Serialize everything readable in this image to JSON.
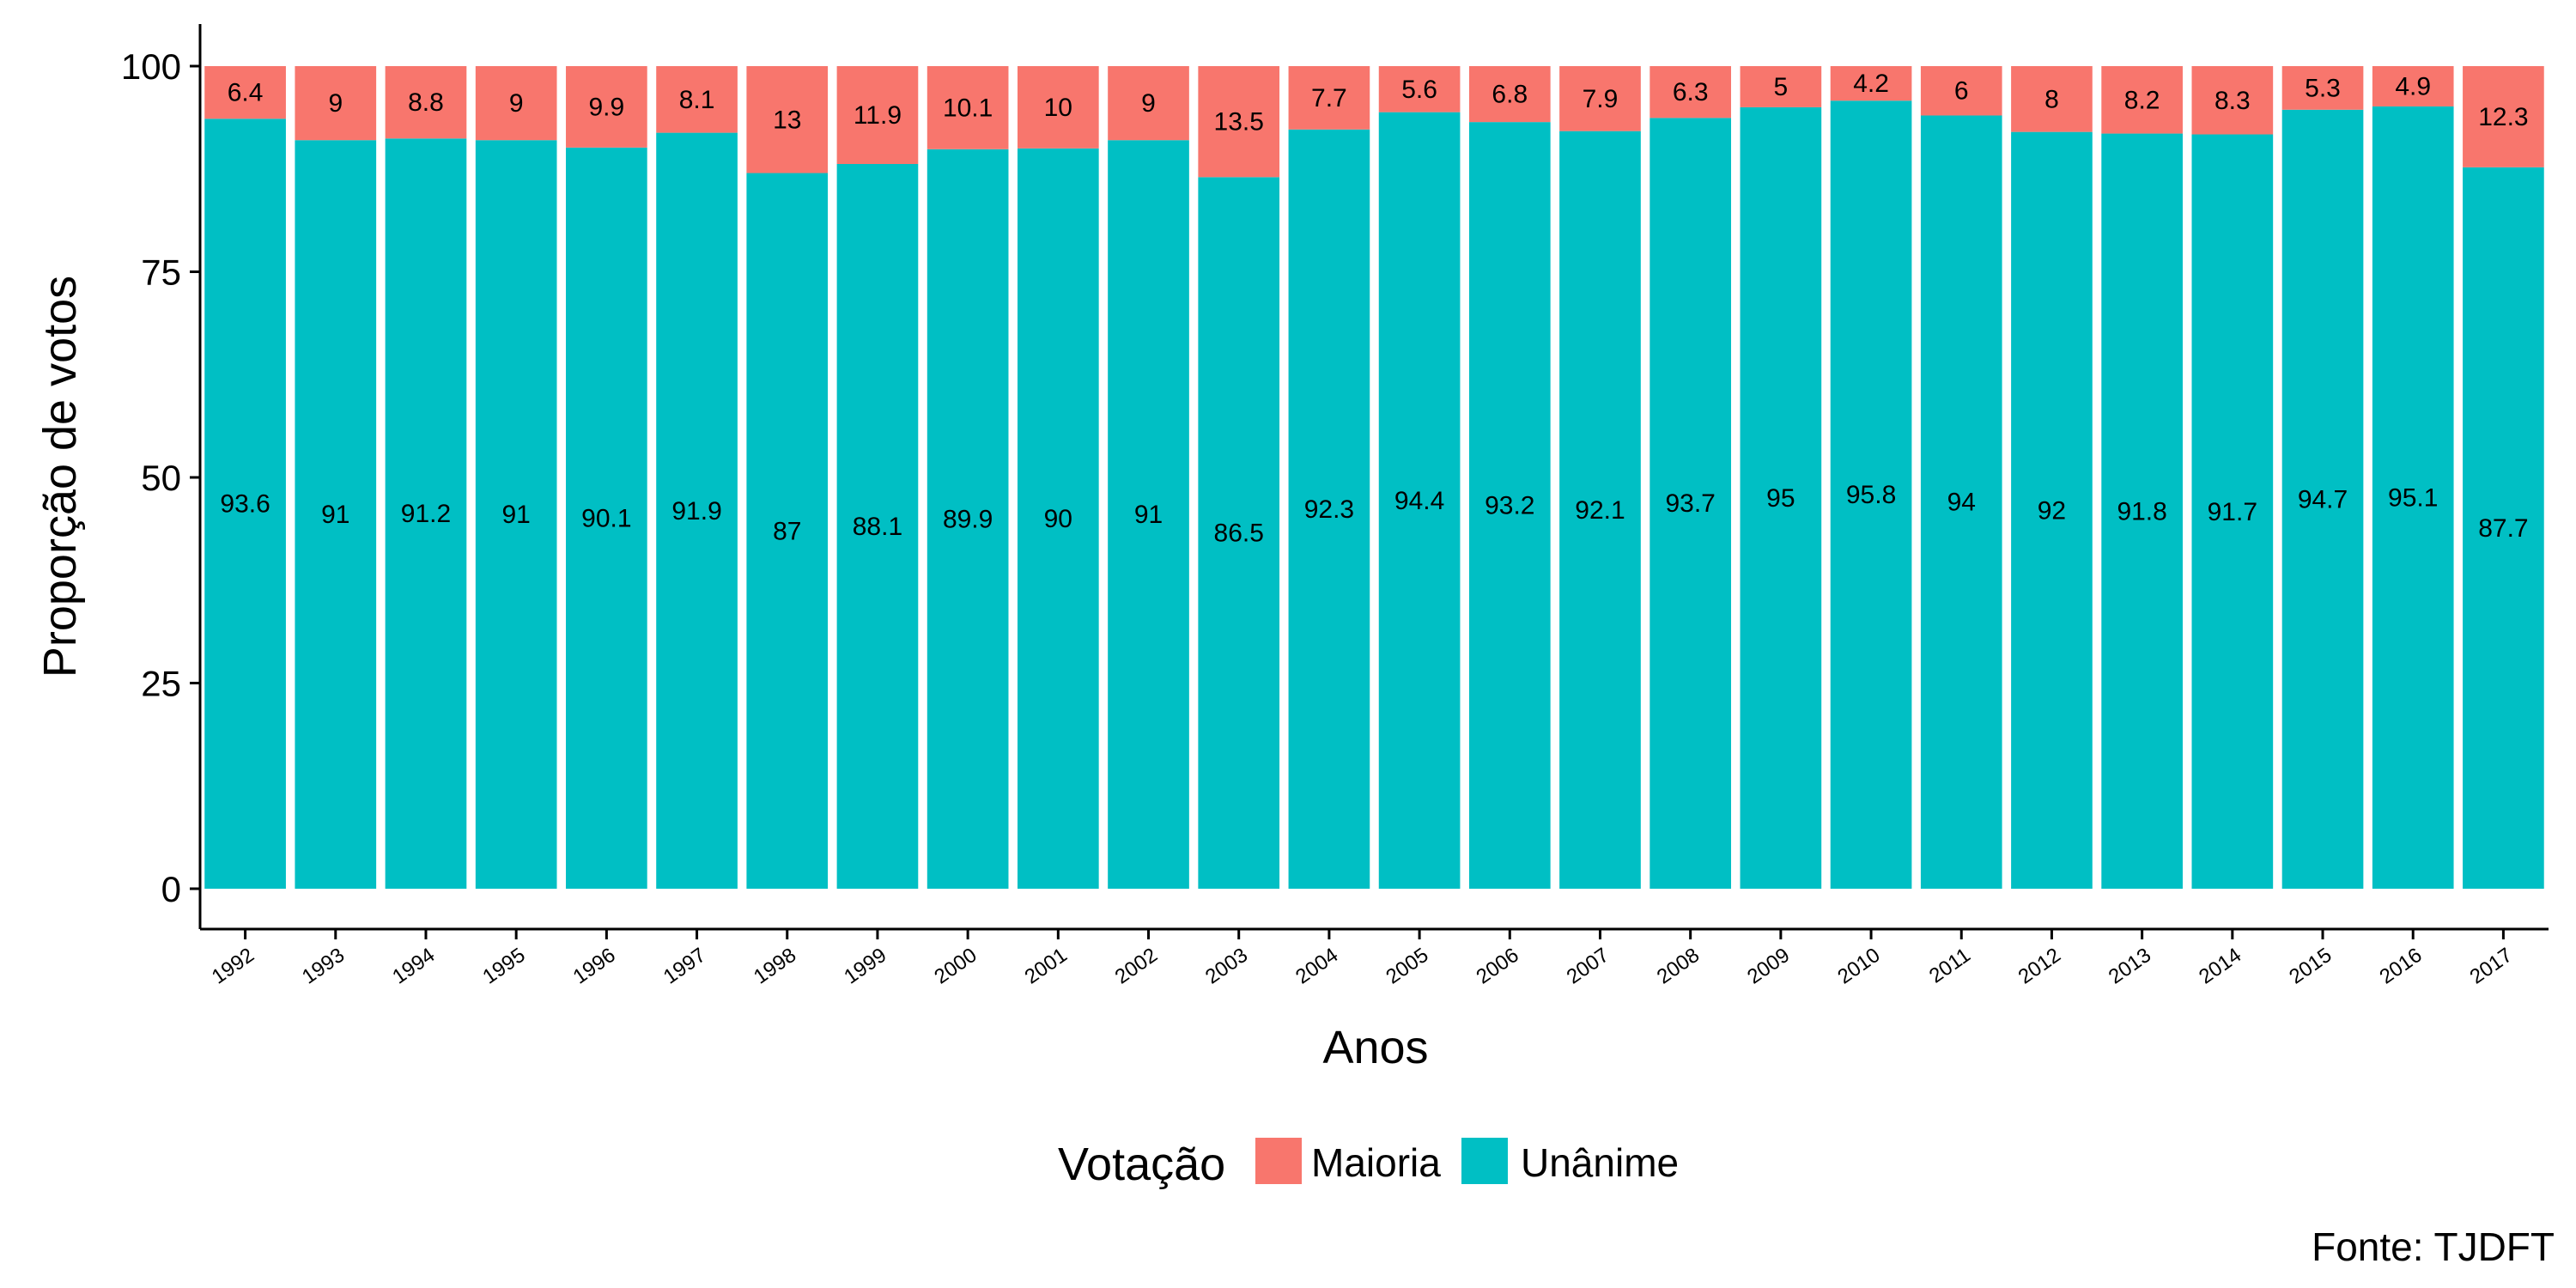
{
  "chart_data": {
    "type": "bar",
    "stacked": true,
    "categories": [
      "1992",
      "1993",
      "1994",
      "1995",
      "1996",
      "1997",
      "1998",
      "1999",
      "2000",
      "2001",
      "2002",
      "2003",
      "2004",
      "2005",
      "2006",
      "2007",
      "2008",
      "2009",
      "2010",
      "2011",
      "2012",
      "2013",
      "2014",
      "2015",
      "2016",
      "2017"
    ],
    "series": [
      {
        "name": "Maioria",
        "color": "#F8766D",
        "values": [
          6.4,
          9,
          8.8,
          9,
          9.9,
          8.1,
          13,
          11.9,
          10.1,
          10,
          9,
          13.5,
          7.7,
          5.6,
          6.8,
          7.9,
          6.3,
          5,
          4.2,
          6,
          8,
          8.2,
          8.3,
          5.3,
          4.9,
          12.3
        ]
      },
      {
        "name": "Unânime",
        "color": "#00BFC4",
        "values": [
          93.6,
          91,
          91.2,
          91,
          90.1,
          91.9,
          87,
          88.1,
          89.9,
          90,
          91,
          86.5,
          92.3,
          94.4,
          93.2,
          92.1,
          93.7,
          95,
          95.8,
          94,
          92,
          91.8,
          91.7,
          94.7,
          95.1,
          87.7
        ]
      }
    ],
    "title": "",
    "xlabel": "Anos",
    "ylabel": "Proporção de votos",
    "ylim": [
      0,
      100
    ],
    "yticks": [
      "0",
      "25",
      "50",
      "75",
      "100"
    ],
    "grid": false,
    "legend": {
      "title": "Votação",
      "position": "bottom",
      "items": [
        "Maioria",
        "Unânime"
      ]
    },
    "caption": "Fonte: TJDFT"
  }
}
